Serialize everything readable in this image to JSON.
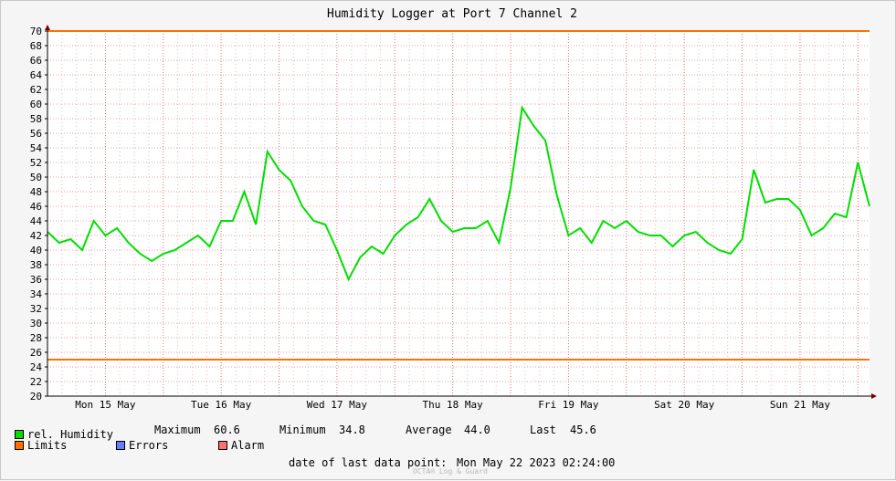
{
  "chart_data": {
    "type": "line",
    "title": "Humidity Logger at Port 7 Channel 2",
    "ylim": [
      20,
      70
    ],
    "y_ticks": [
      20,
      22,
      24,
      26,
      28,
      30,
      32,
      34,
      36,
      38,
      40,
      42,
      44,
      46,
      48,
      50,
      52,
      54,
      56,
      58,
      60,
      62,
      64,
      66,
      68,
      70
    ],
    "x_labels": [
      "Mon 15 May",
      "Tue 16 May",
      "Wed 17 May",
      "Thu 18 May",
      "Fri 19 May",
      "Sat 20 May",
      "Sun 21 May"
    ],
    "limits": [
      70,
      25
    ],
    "series": [
      {
        "name": "rel. Humidity",
        "color": "#00e000",
        "x": [
          0,
          0.1,
          0.2,
          0.3,
          0.4,
          0.5,
          0.6,
          0.7,
          0.8,
          0.9,
          1.0,
          1.1,
          1.2,
          1.3,
          1.4,
          1.5,
          1.6,
          1.7,
          1.8,
          1.9,
          2.0,
          2.1,
          2.2,
          2.3,
          2.4,
          2.5,
          2.6,
          2.7,
          2.8,
          2.9,
          3.0,
          3.1,
          3.2,
          3.3,
          3.4,
          3.5,
          3.6,
          3.7,
          3.8,
          3.9,
          4.0,
          4.1,
          4.2,
          4.3,
          4.4,
          4.5,
          4.6,
          4.7,
          4.8,
          4.9,
          5.0,
          5.1,
          5.2,
          5.3,
          5.4,
          5.5,
          5.6,
          5.7,
          5.8,
          5.9,
          6.0,
          6.1,
          6.2,
          6.3,
          6.4,
          6.5,
          6.6,
          6.7,
          6.8,
          6.9,
          7.0,
          7.1
        ],
        "y": [
          42.5,
          41,
          41.5,
          40,
          44,
          42,
          43,
          41,
          39.5,
          38.5,
          39.5,
          40,
          41,
          42,
          40.5,
          44,
          44,
          48,
          43.5,
          53.5,
          51,
          49.5,
          46,
          44,
          43.5,
          40,
          36,
          39,
          40.5,
          39.5,
          42,
          43.5,
          44.5,
          47,
          44,
          42.5,
          43,
          43,
          44,
          41,
          48.5,
          59.5,
          57,
          55,
          47.5,
          42,
          43,
          41,
          44,
          43,
          44,
          42.5,
          42,
          42,
          40.5,
          42,
          42.5,
          41,
          40,
          39.5,
          41.5,
          51,
          46.5,
          47,
          47,
          45.5,
          42,
          43,
          45,
          44.5,
          52,
          46
        ]
      }
    ],
    "legend": {
      "series_label": "rel. Humidity",
      "series_color": "#00e000",
      "limits_label": "Limits",
      "limits_color": "#ff7000",
      "errors_label": "Errors",
      "errors_color": "#6a7cff",
      "alarm_label": "Alarm",
      "alarm_color": "#ff7070"
    },
    "stats": {
      "maximum_label": "Maximum",
      "maximum_value": "60.6",
      "minimum_label": "Minimum",
      "minimum_value": "34.8",
      "average_label": "Average",
      "average_value": "44.0",
      "last_label": "Last",
      "last_value": "45.6"
    },
    "footer": {
      "last_point_label": "date of last data point:",
      "last_point_value": "Mon May 22 2023 02:24:00",
      "watermark": "OCTA® Log & Guard"
    }
  }
}
